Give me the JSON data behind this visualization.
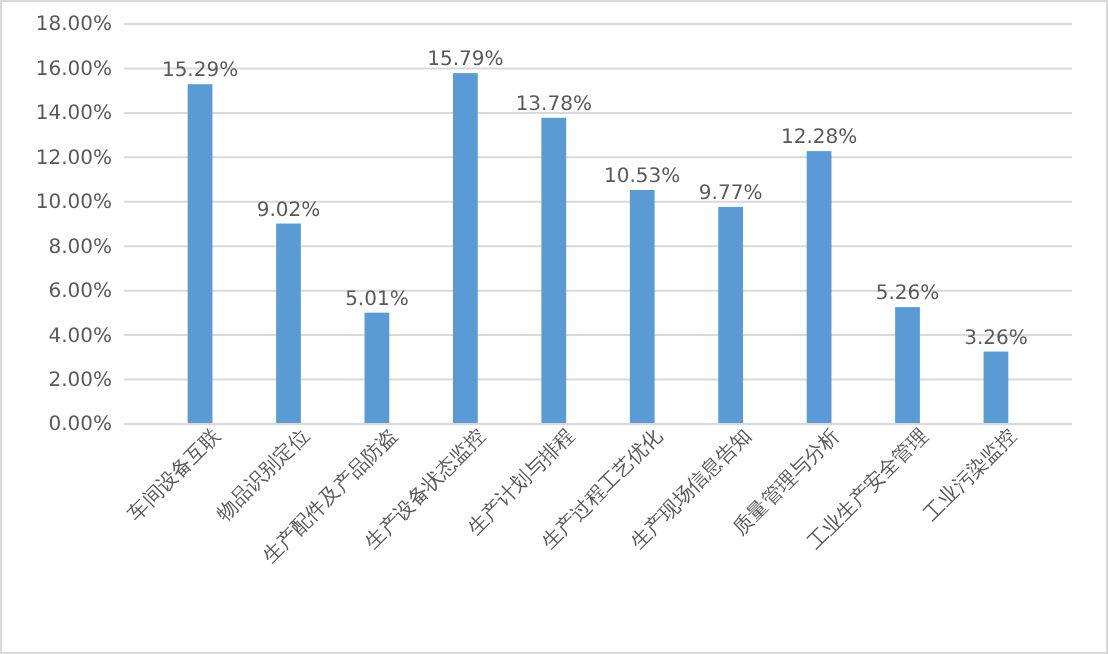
{
  "chart_data": {
    "type": "bar",
    "categories": [
      "车间设备互联",
      "物品识别定位",
      "生产配件及产品防盗",
      "生产设备状态监控",
      "生产计划与排程",
      "生产过程工艺优化",
      "生产现场信息告知",
      "质量管理与分析",
      "工业生产安全管理",
      "工业污染监控"
    ],
    "values": [
      15.29,
      9.02,
      5.01,
      15.79,
      13.78,
      10.53,
      9.77,
      12.28,
      5.26,
      3.26
    ],
    "value_labels": [
      "15.29%",
      "9.02%",
      "5.01%",
      "15.79%",
      "13.78%",
      "10.53%",
      "9.77%",
      "12.28%",
      "5.26%",
      "3.26%"
    ],
    "color": "#5b9bd5",
    "ylim": [
      0,
      18
    ],
    "yticks": [
      {
        "value": 0,
        "label": "0.00%"
      },
      {
        "value": 2,
        "label": "2.00%"
      },
      {
        "value": 4,
        "label": "4.00%"
      },
      {
        "value": 6,
        "label": "6.00%"
      },
      {
        "value": 8,
        "label": "8.00%"
      },
      {
        "value": 10,
        "label": "10.00%"
      },
      {
        "value": 12,
        "label": "12.00%"
      },
      {
        "value": 14,
        "label": "14.00%"
      },
      {
        "value": 16,
        "label": "16.00%"
      },
      {
        "value": 18,
        "label": "18.00%"
      }
    ],
    "grid": true
  }
}
